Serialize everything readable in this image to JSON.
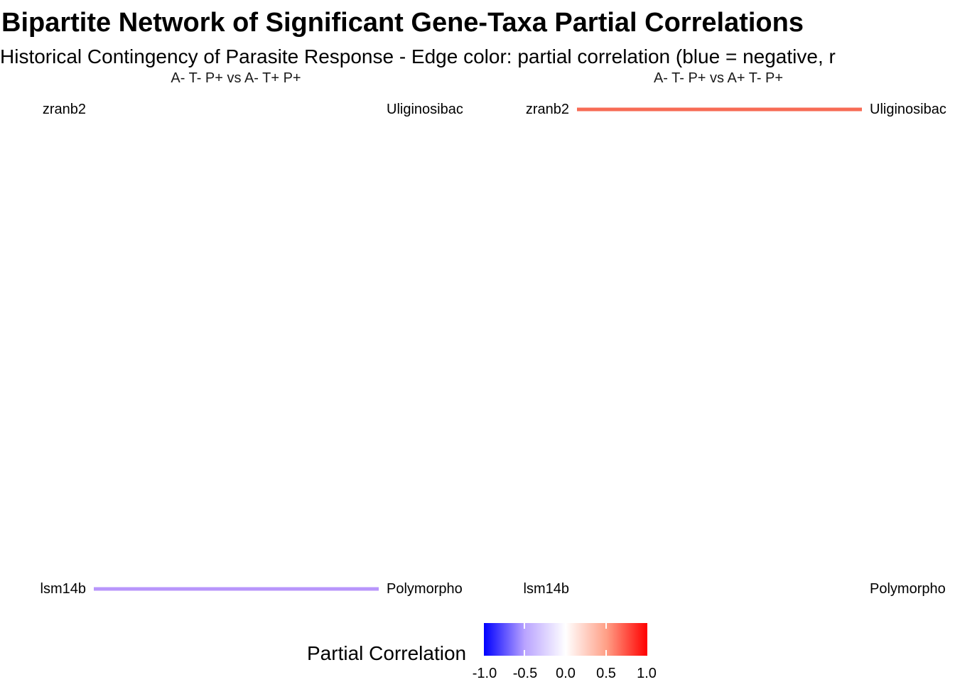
{
  "title": "Bipartite Network of Significant Gene-Taxa Partial Correlations",
  "subtitle": "Historical Contingency of Parasite Response - Edge color: partial correlation (blue = negative, r",
  "chart_data": {
    "type": "bipartite-network",
    "facets": [
      {
        "title": "A- T- P+ vs A- T+ P+",
        "genes": [
          "zranb2",
          "lsm14b"
        ],
        "taxa": [
          "Uliginosibac",
          "Polymorpho"
        ],
        "edges": [
          {
            "gene": "lsm14b",
            "taxon": "Polymorpho",
            "partial_correlation": -0.3,
            "color": "#b896fb"
          }
        ]
      },
      {
        "title": "A- T- P+ vs A+ T- P+",
        "genes": [
          "zranb2",
          "lsm14b"
        ],
        "taxa": [
          "Uliginosibac",
          "Polymorpho"
        ],
        "edges": [
          {
            "gene": "zranb2",
            "taxon": "Uliginosibac",
            "partial_correlation": 0.6,
            "color": "#f76b55"
          }
        ]
      }
    ],
    "legend": {
      "title": "Partial Correlation",
      "ticks": [
        "-1.0",
        "-0.5",
        "0.0",
        "0.5",
        "1.0"
      ],
      "range": [
        -1.0,
        1.0
      ],
      "low_color": "#0000ff",
      "mid_color": "#ffffff",
      "high_color": "#ff0000",
      "position": "bottom"
    }
  }
}
